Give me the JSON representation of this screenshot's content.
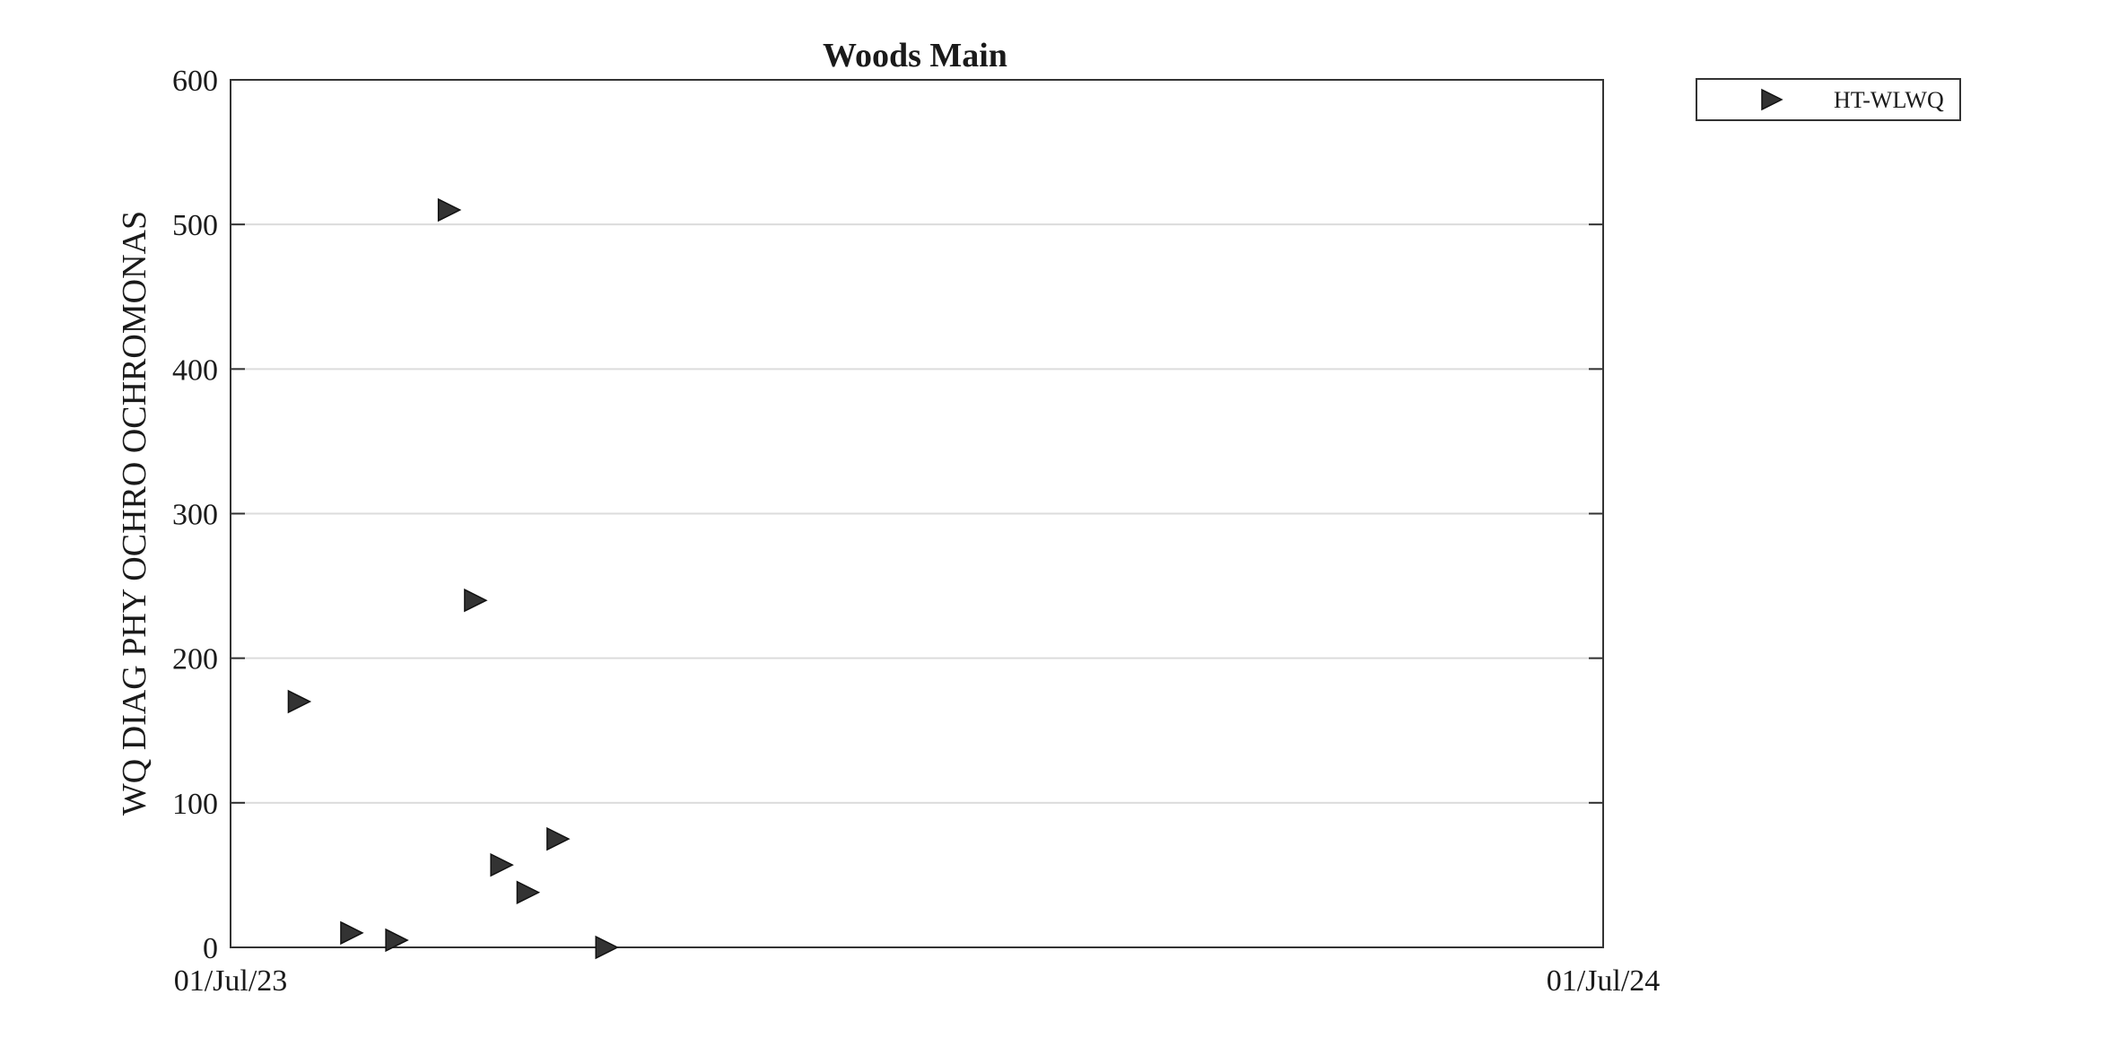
{
  "chart_data": {
    "type": "scatter",
    "title": "Woods Main",
    "xlabel": "",
    "ylabel": "WQ DIAG PHY OCHRO OCHROMONAS",
    "x_axis_type": "date",
    "xlim": [
      "2023-07-01",
      "2024-07-01"
    ],
    "ylim": [
      0,
      600
    ],
    "x_ticks": [
      "2023-07-01",
      "2024-07-01"
    ],
    "x_tick_labels": [
      "01/Jul/23",
      "01/Jul/24"
    ],
    "y_ticks": [
      0,
      100,
      200,
      300,
      400,
      500,
      600
    ],
    "y_tick_labels": [
      "0",
      "100",
      "200",
      "300",
      "400",
      "500",
      "600"
    ],
    "grid": "horizontal",
    "legend_position": "top-right-outside",
    "marker": "triangle-right",
    "marker_color": "#333333",
    "series": [
      {
        "name": "HT-WLWQ",
        "points": [
          {
            "x": "2023-07-19",
            "y": 170
          },
          {
            "x": "2023-08-02",
            "y": 10
          },
          {
            "x": "2023-08-14",
            "y": 5
          },
          {
            "x": "2023-08-28",
            "y": 510
          },
          {
            "x": "2023-09-04",
            "y": 240
          },
          {
            "x": "2023-09-11",
            "y": 57
          },
          {
            "x": "2023-09-18",
            "y": 38
          },
          {
            "x": "2023-09-26",
            "y": 75
          },
          {
            "x": "2023-10-09",
            "y": 0
          }
        ]
      }
    ]
  }
}
